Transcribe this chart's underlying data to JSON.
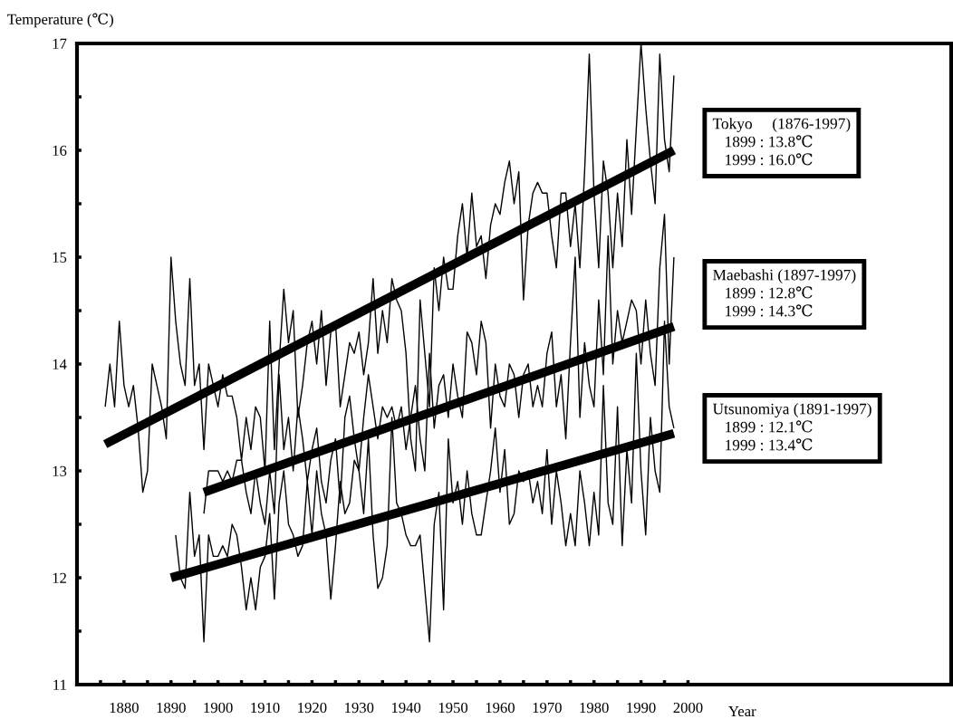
{
  "chart_data": {
    "type": "line",
    "ylabel": "Temperature (℃)",
    "xlabel": "Year",
    "xlim": [
      1870,
      2056
    ],
    "ylim": [
      11,
      17
    ],
    "xticks": [
      {
        "value": 1875,
        "label": null
      },
      1880,
      {
        "value": 1885,
        "label": null
      },
      1890,
      {
        "value": 1895,
        "label": null
      },
      1900,
      {
        "value": 1905,
        "label": null
      },
      1910,
      {
        "value": 1915,
        "label": null
      },
      1920,
      {
        "value": 1925,
        "label": null
      },
      1930,
      {
        "value": 1935,
        "label": null
      },
      1940,
      {
        "value": 1945,
        "label": null
      },
      1950,
      {
        "value": 1955,
        "label": null
      },
      1960,
      {
        "value": 1965,
        "label": null
      },
      1970,
      {
        "value": 1975,
        "label": null
      },
      1980,
      {
        "value": 1985,
        "label": null
      },
      1990,
      {
        "value": 1995,
        "label": null
      },
      2000
    ],
    "yticks": [
      11,
      {
        "value": 11.5,
        "label": null
      },
      12,
      {
        "value": 12.5,
        "label": null
      },
      13,
      {
        "value": 13.5,
        "label": null
      },
      14,
      {
        "value": 14.5,
        "label": null
      },
      15,
      {
        "value": 15.5,
        "label": null
      },
      16,
      {
        "value": 16.5,
        "label": null
      },
      17
    ],
    "grid": false,
    "legend": false,
    "marker": "none",
    "line_style": "solid",
    "series": [
      {
        "color": "#000000",
        "x": [
          1876,
          1877,
          1878,
          1879,
          1880,
          1881,
          1882,
          1883,
          1884,
          1885,
          1886,
          1887,
          1888,
          1889,
          1890,
          1891,
          1892,
          1893,
          1894,
          1895,
          1896,
          1897,
          1898,
          1899,
          1900,
          1901,
          1902,
          1903,
          1904,
          1905,
          1906,
          1907,
          1908,
          1909,
          1910,
          1911,
          1912,
          1913,
          1914,
          1915,
          1916,
          1917,
          1918,
          1919,
          1920,
          1921,
          1922,
          1923,
          1924,
          1925,
          1926,
          1927,
          1928,
          1929,
          1930,
          1931,
          1932,
          1933,
          1934,
          1935,
          1936,
          1937,
          1938,
          1939,
          1940,
          1941,
          1942,
          1943,
          1944,
          1945,
          1946,
          1947,
          1948,
          1949,
          1950,
          1951,
          1952,
          1953,
          1954,
          1955,
          1956,
          1957,
          1958,
          1959,
          1960,
          1961,
          1962,
          1963,
          1964,
          1965,
          1966,
          1967,
          1968,
          1969,
          1970,
          1971,
          1972,
          1973,
          1974,
          1975,
          1976,
          1977,
          1978,
          1979,
          1980,
          1981,
          1982,
          1983,
          1984,
          1985,
          1986,
          1987,
          1988,
          1989,
          1990,
          1991,
          1992,
          1993,
          1994,
          1995,
          1996,
          1997
        ],
        "values": [
          13.6,
          14.0,
          13.6,
          14.4,
          13.8,
          13.6,
          13.8,
          13.4,
          12.8,
          13.0,
          14.0,
          13.8,
          13.6,
          13.3,
          15.0,
          14.4,
          14.0,
          13.8,
          14.8,
          13.8,
          14.0,
          13.2,
          14.0,
          13.8,
          13.6,
          13.9,
          13.7,
          13.7,
          13.5,
          13.1,
          13.5,
          13.2,
          13.6,
          13.5,
          13.0,
          14.4,
          13.2,
          14.0,
          14.7,
          14.2,
          14.5,
          13.5,
          13.8,
          14.2,
          14.4,
          14.0,
          14.5,
          13.8,
          14.3,
          14.4,
          13.6,
          13.9,
          14.2,
          14.1,
          14.3,
          13.9,
          14.2,
          14.8,
          14.1,
          14.5,
          14.2,
          14.8,
          14.6,
          14.5,
          14.1,
          13.3,
          13.0,
          14.6,
          14.1,
          13.6,
          14.9,
          14.5,
          15.0,
          14.7,
          14.7,
          15.2,
          15.5,
          15.0,
          15.6,
          15.1,
          15.2,
          14.8,
          15.3,
          15.5,
          15.4,
          15.7,
          15.9,
          15.5,
          15.8,
          14.6,
          15.3,
          15.6,
          15.7,
          15.6,
          15.6,
          15.2,
          14.9,
          15.6,
          15.6,
          15.1,
          15.5,
          14.9,
          15.8,
          16.9,
          15.6,
          14.9,
          15.9,
          15.6,
          14.9,
          15.6,
          15.1,
          16.1,
          15.4,
          16.2,
          17.0,
          16.4,
          15.9,
          15.5,
          16.9,
          16.1,
          15.8,
          16.7
        ]
      },
      {
        "color": "#000000",
        "x": [
          1897,
          1898,
          1899,
          1900,
          1901,
          1902,
          1903,
          1904,
          1905,
          1906,
          1907,
          1908,
          1909,
          1910,
          1911,
          1912,
          1913,
          1914,
          1915,
          1916,
          1917,
          1918,
          1919,
          1920,
          1921,
          1922,
          1923,
          1924,
          1925,
          1926,
          1927,
          1928,
          1929,
          1930,
          1931,
          1932,
          1933,
          1934,
          1935,
          1936,
          1937,
          1938,
          1939,
          1940,
          1941,
          1942,
          1943,
          1944,
          1945,
          1946,
          1947,
          1948,
          1949,
          1950,
          1951,
          1952,
          1953,
          1954,
          1955,
          1956,
          1957,
          1958,
          1959,
          1960,
          1961,
          1962,
          1963,
          1964,
          1965,
          1966,
          1967,
          1968,
          1969,
          1970,
          1971,
          1972,
          1973,
          1974,
          1975,
          1976,
          1977,
          1978,
          1979,
          1980,
          1981,
          1982,
          1983,
          1984,
          1985,
          1986,
          1987,
          1988,
          1989,
          1990,
          1991,
          1992,
          1993,
          1994,
          1995,
          1996,
          1997
        ],
        "values": [
          12.6,
          13.0,
          13.0,
          13.0,
          12.9,
          13.0,
          12.9,
          13.1,
          13.1,
          12.8,
          12.6,
          13.0,
          12.7,
          12.5,
          13.0,
          12.6,
          13.9,
          13.2,
          13.5,
          13.0,
          13.6,
          13.3,
          12.9,
          13.2,
          13.4,
          12.9,
          12.7,
          13.1,
          13.3,
          12.7,
          13.5,
          13.7,
          13.3,
          13.0,
          13.5,
          13.9,
          13.6,
          13.3,
          13.6,
          13.5,
          13.6,
          13.4,
          13.6,
          13.2,
          13.5,
          13.8,
          13.3,
          13.0,
          14.1,
          13.4,
          13.8,
          13.9,
          13.5,
          14.0,
          13.7,
          13.5,
          14.3,
          14.2,
          13.9,
          14.4,
          14.2,
          13.4,
          14.0,
          13.7,
          13.6,
          14.0,
          13.9,
          13.5,
          13.9,
          14.0,
          13.6,
          13.8,
          13.6,
          14.1,
          14.3,
          13.6,
          13.9,
          13.3,
          14.2,
          15.0,
          13.5,
          14.2,
          13.8,
          13.6,
          14.6,
          13.9,
          15.2,
          14.0,
          14.5,
          14.2,
          14.4,
          14.6,
          14.5,
          14.0,
          14.6,
          14.1,
          13.8,
          14.9,
          15.4,
          14.0,
          15.0
        ]
      },
      {
        "color": "#000000",
        "x": [
          1891,
          1892,
          1893,
          1894,
          1895,
          1896,
          1897,
          1898,
          1899,
          1900,
          1901,
          1902,
          1903,
          1904,
          1905,
          1906,
          1907,
          1908,
          1909,
          1910,
          1911,
          1912,
          1913,
          1914,
          1915,
          1916,
          1917,
          1918,
          1919,
          1920,
          1921,
          1922,
          1923,
          1924,
          1925,
          1926,
          1927,
          1928,
          1929,
          1930,
          1931,
          1932,
          1933,
          1934,
          1935,
          1936,
          1937,
          1938,
          1939,
          1940,
          1941,
          1942,
          1943,
          1944,
          1945,
          1946,
          1947,
          1948,
          1949,
          1950,
          1951,
          1952,
          1953,
          1954,
          1955,
          1956,
          1957,
          1958,
          1959,
          1960,
          1961,
          1962,
          1963,
          1964,
          1965,
          1966,
          1967,
          1968,
          1969,
          1970,
          1971,
          1972,
          1973,
          1974,
          1975,
          1976,
          1977,
          1978,
          1979,
          1980,
          1981,
          1982,
          1983,
          1984,
          1985,
          1986,
          1987,
          1988,
          1989,
          1990,
          1991,
          1992,
          1993,
          1994,
          1995,
          1996,
          1997
        ],
        "values": [
          12.4,
          12.0,
          11.9,
          12.8,
          12.2,
          12.4,
          11.4,
          12.4,
          12.2,
          12.2,
          12.3,
          12.2,
          12.5,
          12.4,
          12.1,
          11.7,
          12.0,
          11.7,
          12.1,
          12.2,
          12.6,
          11.8,
          12.7,
          13.0,
          12.5,
          12.4,
          12.2,
          12.3,
          12.9,
          12.4,
          13.0,
          12.6,
          12.4,
          11.8,
          12.3,
          12.9,
          12.6,
          12.7,
          13.1,
          13.0,
          12.6,
          13.3,
          12.4,
          11.9,
          12.0,
          12.3,
          13.5,
          12.7,
          12.6,
          12.4,
          12.3,
          12.3,
          12.4,
          11.9,
          11.4,
          12.5,
          12.8,
          11.7,
          13.3,
          12.7,
          12.9,
          12.5,
          13.0,
          12.6,
          12.4,
          12.4,
          12.7,
          13.0,
          13.4,
          12.8,
          13.2,
          12.5,
          12.6,
          13.0,
          12.9,
          13.0,
          12.7,
          12.9,
          12.6,
          13.2,
          12.5,
          13.0,
          12.7,
          12.3,
          12.6,
          12.3,
          13.0,
          12.7,
          12.3,
          12.8,
          12.4,
          13.8,
          12.7,
          12.5,
          13.6,
          12.3,
          13.2,
          12.7,
          14.1,
          13.0,
          12.4,
          13.5,
          13.0,
          12.8,
          14.4,
          13.6,
          13.4
        ]
      },
      {
        "color": "#000000",
        "x": [
          1876,
          1997
        ],
        "values": [
          13.25,
          16.0
        ]
      },
      {
        "color": "#000000",
        "x": [
          1897,
          1997
        ],
        "values": [
          12.8,
          14.35
        ]
      },
      {
        "color": "#000000",
        "x": [
          1890,
          1997
        ],
        "values": [
          12.0,
          13.35
        ]
      }
    ],
    "annotations": [
      "Tokyo     (1876-1997)\n   1899 : 13.8℃\n   1999 : 16.0℃",
      "Maebashi (1897-1997)\n   1899 : 12.8℃\n   1999 : 14.3℃",
      "Utsunomiya (1891-1997)\n   1899 : 12.1℃\n   1999 : 13.4℃"
    ]
  }
}
